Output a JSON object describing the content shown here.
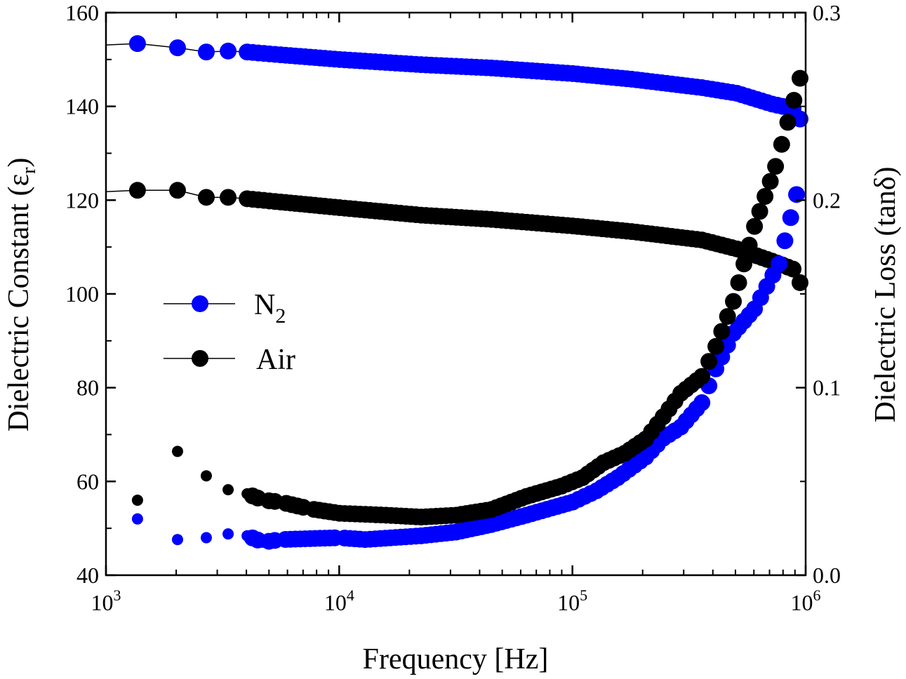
{
  "chart_data": {
    "type": "scatter",
    "xlabel": "Frequency [Hz]",
    "ylabel_left": "Dielectric Constant (ε",
    "ylabel_left_sub": "r",
    "ylabel_left_end": ")",
    "ylabel_right": "Dielectric Loss (tanδ)",
    "xscale": "log",
    "xlim": [
      1000,
      1000000
    ],
    "ylim_left": [
      40,
      160
    ],
    "ylim_right": [
      0.0,
      0.3
    ],
    "x_ticks": [
      {
        "base": "10",
        "exp": "3"
      },
      {
        "base": "10",
        "exp": "4"
      },
      {
        "base": "10",
        "exp": "5"
      },
      {
        "base": "10",
        "exp": "6"
      }
    ],
    "y_left_ticks": [
      "40",
      "60",
      "80",
      "100",
      "120",
      "140",
      "160"
    ],
    "y_right_ticks": [
      "0.0",
      "0.1",
      "0.2",
      "0.3"
    ],
    "legend": {
      "placement": "center-left",
      "entries": [
        {
          "label": "N",
          "sub": "2",
          "color": "#0000ff"
        },
        {
          "label": "Air",
          "sub": "",
          "color": "#000000"
        }
      ]
    },
    "series": [
      {
        "name": "N2 dielectric constant",
        "axis": "left",
        "color": "#0000ff",
        "x": [
          1365,
          2027,
          2693,
          3340,
          4030,
          5610,
          10040,
          22440,
          44900,
          100200,
          179500,
          359000,
          507000,
          717500,
          883000,
          946000
        ],
        "y": [
          153.4,
          152.5,
          151.6,
          151.8,
          151.6,
          151.0,
          150.0,
          148.9,
          148.2,
          147.0,
          145.8,
          144.0,
          142.8,
          140.5,
          139.5,
          137.3
        ]
      },
      {
        "name": "Air dielectric constant",
        "axis": "left",
        "color": "#000000",
        "x": [
          1365,
          2027,
          2693,
          3340,
          4030,
          5610,
          10040,
          22440,
          44900,
          100200,
          179500,
          359000,
          507000,
          717500,
          883000,
          946000
        ],
        "y": [
          122.1,
          122.1,
          120.6,
          120.6,
          120.3,
          119.6,
          118.4,
          116.8,
          115.9,
          114.5,
          113.3,
          111.5,
          109.6,
          107.0,
          105.3,
          102.4
        ]
      },
      {
        "name": "N2 dielectric loss",
        "axis": "right",
        "color": "#0000ff",
        "x": [
          1365,
          2027,
          2693,
          3340,
          4030,
          4720,
          5610,
          10040,
          12900,
          22440,
          31750,
          44900,
          63500,
          100200,
          126900,
          156300,
          206100,
          245000,
          291600,
          359000,
          412200,
          490000,
          603500,
          769000,
          914000
        ],
        "y": [
          0.03,
          0.019,
          0.02,
          0.022,
          0.021,
          0.0176,
          0.019,
          0.02,
          0.019,
          0.021,
          0.023,
          0.027,
          0.032,
          0.039,
          0.045,
          0.052,
          0.063,
          0.073,
          0.079,
          0.092,
          0.11,
          0.129,
          0.142,
          0.166,
          0.203
        ]
      },
      {
        "name": "Air dielectric loss",
        "axis": "right",
        "color": "#000000",
        "x": [
          1365,
          2027,
          2693,
          3340,
          4030,
          4720,
          5610,
          7410,
          10040,
          15880,
          22440,
          31750,
          44900,
          63500,
          89800,
          110500,
          136000,
          167500,
          206100,
          245000,
          291600,
          359000,
          412200,
          490000,
          603500,
          743000,
          946000
        ],
        "y": [
          0.04,
          0.066,
          0.053,
          0.0456,
          0.0434,
          0.04,
          0.039,
          0.0355,
          0.033,
          0.032,
          0.031,
          0.032,
          0.035,
          0.042,
          0.0475,
          0.052,
          0.06,
          0.065,
          0.0726,
          0.0845,
          0.097,
          0.106,
          0.122,
          0.146,
          0.186,
          0.218,
          0.265
        ]
      }
    ]
  }
}
